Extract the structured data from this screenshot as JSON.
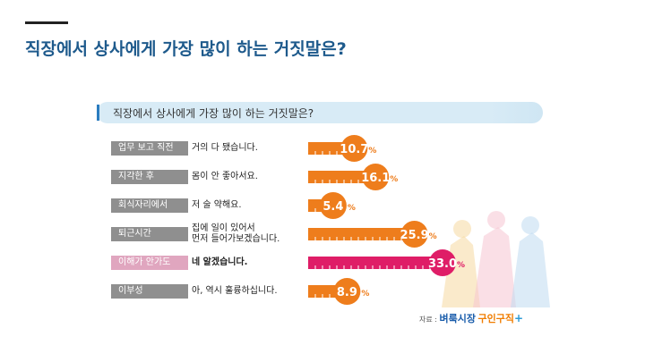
{
  "slide": {
    "title": "직장에서 상사에게 가장 많이 하는 거짓말은?"
  },
  "chart_data": {
    "type": "bar",
    "title": "직장에서 상사에게 가장 많이 하는 거짓말은?",
    "categories": [
      "업무 보고 직전",
      "지각한 후",
      "회식자리에서",
      "퇴근시간",
      "이해가 안가도",
      "이부성"
    ],
    "answers": [
      "거의 다 됐습니다.",
      "몸이 안 좋아서요.",
      "저 술 약해요.",
      "집에 일이 있어서\n먼저 들어가보겠습니다.",
      "네 알겠습니다.",
      "아, 역시 훌륭하십니다."
    ],
    "values": [
      10.7,
      16.1,
      5.4,
      25.9,
      33.0,
      8.9
    ],
    "value_labels": [
      "10.7",
      "16.1",
      "5.4",
      "25.9",
      "33.0",
      "8.9"
    ],
    "unit": "%",
    "highlight_index": 4,
    "colors": {
      "bar": "#ee7d1c",
      "highlight_bar": "#df1d67",
      "label_bg": "#8f8f8f",
      "highlight_label_bg": "#e0a6bf"
    },
    "xlim": [
      0,
      33.0
    ]
  },
  "source": {
    "prefix": "자료 :",
    "brand": "벼룩시장",
    "brand2": "구인구직",
    "plus": "+"
  }
}
